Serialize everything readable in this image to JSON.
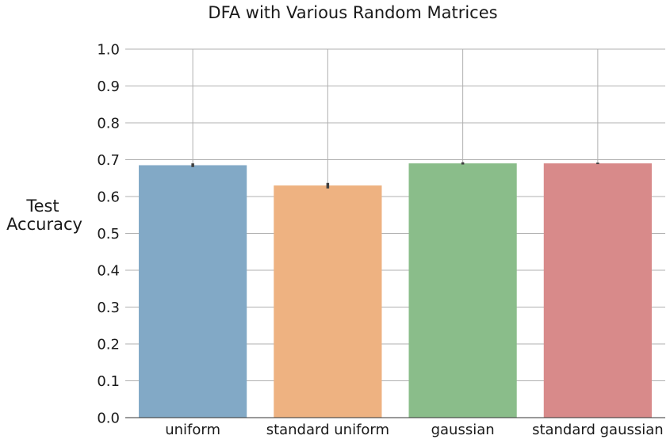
{
  "chart_data": {
    "type": "bar",
    "title": "DFA with Various Random Matrices",
    "xlabel": "",
    "ylabel": [
      "Test",
      "Accuracy"
    ],
    "categories": [
      "uniform",
      "standard uniform",
      "gaussian",
      "standard gaussian"
    ],
    "values": [
      0.685,
      0.63,
      0.69,
      0.69
    ],
    "error_low": [
      0.68,
      0.622,
      0.687,
      0.688
    ],
    "error_high": [
      0.69,
      0.637,
      0.693,
      0.692
    ],
    "colors": [
      "#82a9c6",
      "#eeb281",
      "#8abd8a",
      "#d88a8a"
    ],
    "error_color": "#3f3f3f",
    "ylim": [
      0,
      1
    ],
    "yticks": [
      "0.0",
      "0.1",
      "0.2",
      "0.3",
      "0.4",
      "0.5",
      "0.6",
      "0.7",
      "0.8",
      "0.9",
      "1.0"
    ],
    "grid": true,
    "legend": "none"
  }
}
